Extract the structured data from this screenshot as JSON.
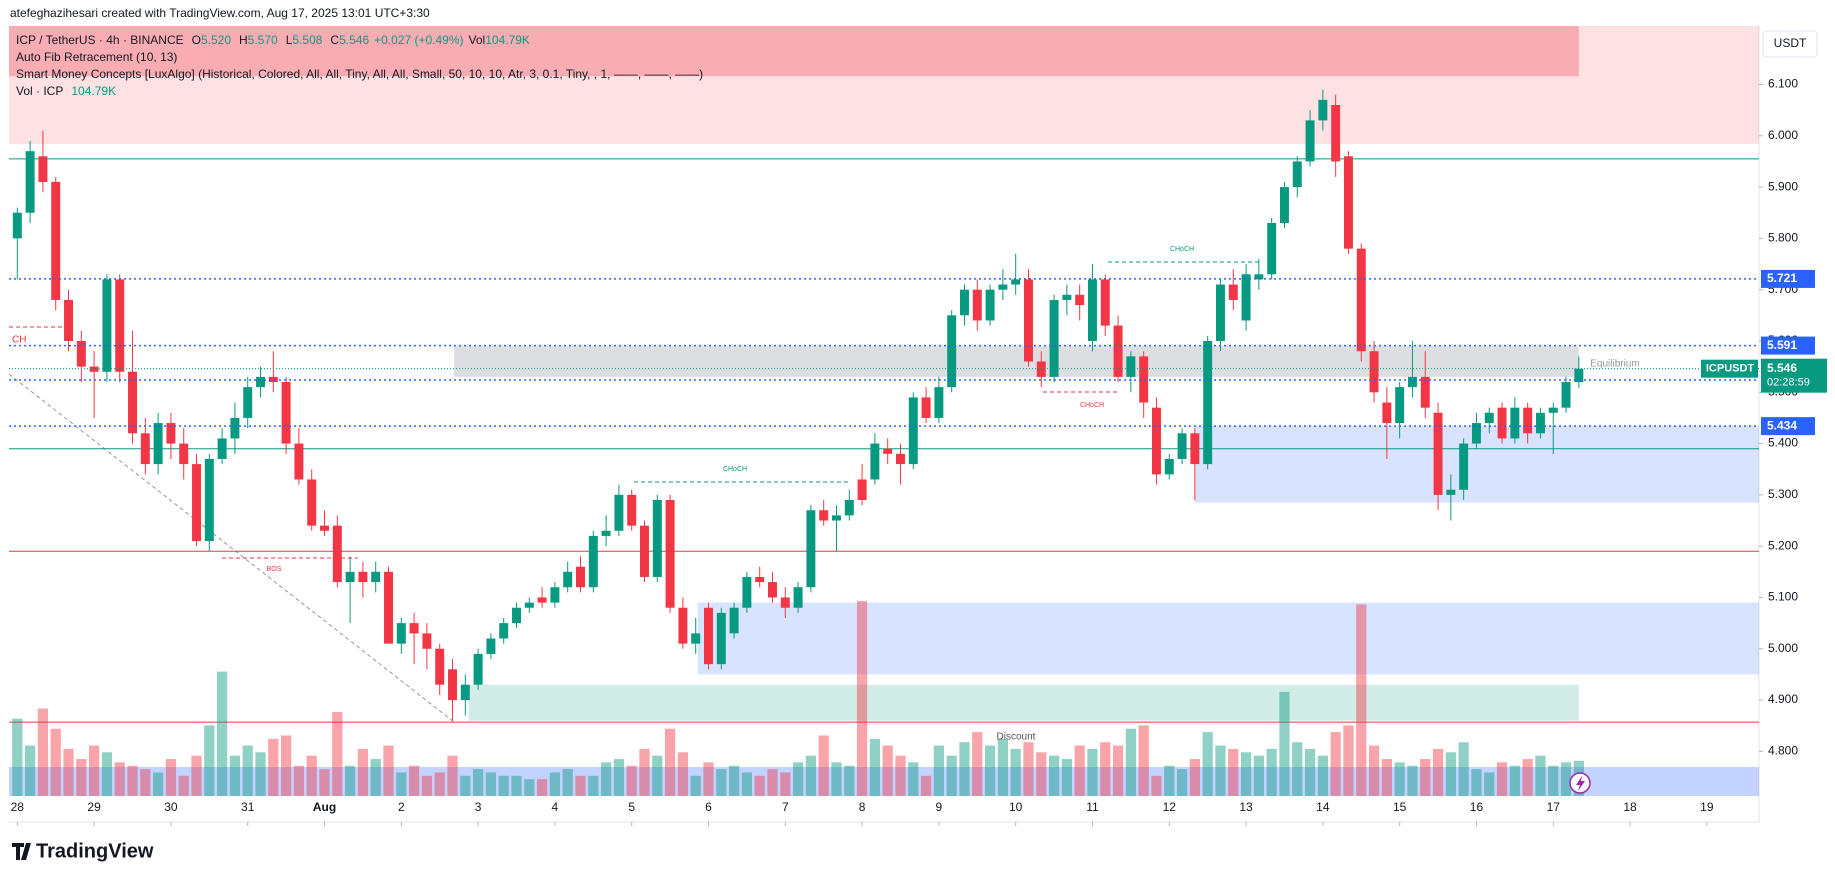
{
  "header": "atefeghazihesari created with TradingView.com, Aug 17, 2025 13:01 UTC+3:30",
  "currency": "USDT",
  "brand": "TradingView",
  "legend": {
    "symbol": "ICP / TetherUS · 4h · BINANCE",
    "ohlc": [
      {
        "label": "O",
        "value": "5.520"
      },
      {
        "label": "H",
        "value": "5.570"
      },
      {
        "label": "L",
        "value": "5.508"
      },
      {
        "label": "C",
        "value": "5.546"
      }
    ],
    "change": "+0.027 (+0.49%)",
    "vol_label": "Vol",
    "vol": "104.79K",
    "indicators": [
      "Auto Fib Retracement (10, 13)",
      "Smart Money Concepts [LuxAlgo] (Historical, Colored, All, All, Tiny, All, All, Small, 50, 10, 10, Atr, 3, 0.1, Tiny, , 1, ——, ——, ——)"
    ],
    "vol_indicator": "Vol · ICP",
    "vol_indicator_value": "104.79K"
  },
  "chart_data": {
    "type": "candlestick",
    "up_color": "#089981",
    "down_color": "#f23645",
    "xlim": [
      -2.6,
      544.3
    ],
    "ylim": [
      4.713,
      6.214
    ],
    "xticks": [
      {
        "value": 0,
        "label": "28"
      },
      {
        "value": 24,
        "label": "29"
      },
      {
        "value": 48,
        "label": "30"
      },
      {
        "value": 72,
        "label": "31"
      },
      {
        "value": 96,
        "label": "Aug"
      },
      {
        "value": 120,
        "label": "2"
      },
      {
        "value": 144,
        "label": "3"
      },
      {
        "value": 168,
        "label": "4"
      },
      {
        "value": 192,
        "label": "5"
      },
      {
        "value": 216,
        "label": "6"
      },
      {
        "value": 240,
        "label": "7"
      },
      {
        "value": 264,
        "label": "8"
      },
      {
        "value": 288,
        "label": "9"
      },
      {
        "value": 312,
        "label": "10"
      },
      {
        "value": 336,
        "label": "11"
      },
      {
        "value": 360,
        "label": "12"
      },
      {
        "value": 384,
        "label": "13"
      },
      {
        "value": 408,
        "label": "14"
      },
      {
        "value": 432,
        "label": "15"
      },
      {
        "value": 456,
        "label": "16"
      },
      {
        "value": 480,
        "label": "17"
      },
      {
        "value": 504,
        "label": "18"
      },
      {
        "value": 528,
        "label": "19"
      }
    ],
    "yticks": [
      {
        "value": 4.8,
        "label": "4.800"
      },
      {
        "value": 4.9,
        "label": "4.900"
      },
      {
        "value": 5.0,
        "label": "5.000"
      },
      {
        "value": 5.1,
        "label": "5.100"
      },
      {
        "value": 5.2,
        "label": "5.200"
      },
      {
        "value": 5.3,
        "label": "5.300"
      },
      {
        "value": 5.4,
        "label": "5.400"
      },
      {
        "value": 5.5,
        "label": "5.500"
      },
      {
        "value": 5.6,
        "label": "5.600"
      },
      {
        "value": 5.7,
        "label": "5.700"
      },
      {
        "value": 5.8,
        "label": "5.800"
      },
      {
        "value": 5.9,
        "label": "5.900"
      },
      {
        "value": 6.0,
        "label": "6.000"
      },
      {
        "value": 6.1,
        "label": "6.100"
      }
    ],
    "x": [
      0,
      4,
      8,
      12,
      16,
      20,
      24,
      28,
      32,
      36,
      40,
      44,
      48,
      52,
      56,
      60,
      64,
      68,
      72,
      76,
      80,
      84,
      88,
      92,
      96,
      100,
      104,
      108,
      112,
      116,
      120,
      124,
      128,
      132,
      136,
      140,
      144,
      148,
      152,
      156,
      160,
      164,
      168,
      172,
      176,
      180,
      184,
      188,
      192,
      196,
      200,
      204,
      208,
      212,
      216,
      220,
      224,
      228,
      232,
      236,
      240,
      244,
      248,
      252,
      256,
      260,
      264,
      268,
      272,
      276,
      280,
      284,
      288,
      292,
      296,
      300,
      304,
      308,
      312,
      316,
      320,
      324,
      328,
      332,
      336,
      340,
      344,
      348,
      352,
      356,
      360,
      364,
      368,
      372,
      376,
      380,
      384,
      388,
      392,
      396,
      400,
      404,
      408,
      412,
      416,
      420,
      424,
      428,
      432,
      436,
      440,
      444,
      448,
      452,
      456,
      460,
      464,
      468,
      472,
      476,
      480,
      484,
      488
    ],
    "ohlc": [
      [
        5.8,
        5.86,
        5.72,
        5.85
      ],
      [
        5.85,
        5.99,
        5.83,
        5.97
      ],
      [
        5.96,
        6.01,
        5.89,
        5.91
      ],
      [
        5.91,
        5.92,
        5.66,
        5.68
      ],
      [
        5.68,
        5.7,
        5.58,
        5.6
      ],
      [
        5.6,
        5.62,
        5.52,
        5.55
      ],
      [
        5.55,
        5.58,
        5.45,
        5.54
      ],
      [
        5.54,
        5.73,
        5.52,
        5.72
      ],
      [
        5.72,
        5.73,
        5.52,
        5.54
      ],
      [
        5.54,
        5.62,
        5.4,
        5.42
      ],
      [
        5.42,
        5.45,
        5.34,
        5.36
      ],
      [
        5.36,
        5.46,
        5.34,
        5.44
      ],
      [
        5.44,
        5.46,
        5.37,
        5.4
      ],
      [
        5.4,
        5.43,
        5.33,
        5.36
      ],
      [
        5.36,
        5.38,
        5.2,
        5.21
      ],
      [
        5.21,
        5.38,
        5.19,
        5.37
      ],
      [
        5.37,
        5.43,
        5.36,
        5.41
      ],
      [
        5.41,
        5.48,
        5.38,
        5.45
      ],
      [
        5.45,
        5.53,
        5.43,
        5.51
      ],
      [
        5.51,
        5.55,
        5.49,
        5.53
      ],
      [
        5.53,
        5.58,
        5.5,
        5.52
      ],
      [
        5.52,
        5.53,
        5.38,
        5.4
      ],
      [
        5.4,
        5.43,
        5.32,
        5.33
      ],
      [
        5.33,
        5.35,
        5.23,
        5.24
      ],
      [
        5.24,
        5.27,
        5.22,
        5.23
      ],
      [
        5.24,
        5.26,
        5.12,
        5.13
      ],
      [
        5.13,
        5.18,
        5.05,
        5.15
      ],
      [
        5.15,
        5.17,
        5.1,
        5.13
      ],
      [
        5.13,
        5.17,
        5.11,
        5.15
      ],
      [
        5.15,
        5.16,
        5.01,
        5.01
      ],
      [
        5.01,
        5.06,
        4.99,
        5.05
      ],
      [
        5.05,
        5.07,
        4.97,
        5.03
      ],
      [
        5.03,
        5.05,
        4.96,
        5.0
      ],
      [
        5.0,
        5.01,
        4.91,
        4.93
      ],
      [
        4.96,
        4.98,
        4.86,
        4.9
      ],
      [
        4.9,
        4.95,
        4.87,
        4.93
      ],
      [
        4.93,
        5.0,
        4.92,
        4.99
      ],
      [
        4.99,
        5.03,
        4.98,
        5.02
      ],
      [
        5.02,
        5.06,
        5.01,
        5.05
      ],
      [
        5.05,
        5.09,
        5.04,
        5.08
      ],
      [
        5.08,
        5.1,
        5.07,
        5.09
      ],
      [
        5.1,
        5.12,
        5.08,
        5.09
      ],
      [
        5.09,
        5.13,
        5.08,
        5.12
      ],
      [
        5.12,
        5.17,
        5.11,
        5.15
      ],
      [
        5.16,
        5.18,
        5.11,
        5.12
      ],
      [
        5.12,
        5.23,
        5.11,
        5.22
      ],
      [
        5.22,
        5.26,
        5.2,
        5.23
      ],
      [
        5.23,
        5.32,
        5.22,
        5.3
      ],
      [
        5.3,
        5.31,
        5.23,
        5.24
      ],
      [
        5.24,
        5.25,
        5.13,
        5.14
      ],
      [
        5.14,
        5.3,
        5.13,
        5.29
      ],
      [
        5.29,
        5.3,
        5.07,
        5.08
      ],
      [
        5.08,
        5.1,
        5.0,
        5.01
      ],
      [
        5.01,
        5.06,
        4.99,
        5.03
      ],
      [
        5.08,
        5.09,
        4.96,
        4.97
      ],
      [
        4.97,
        5.08,
        4.96,
        5.07
      ],
      [
        5.03,
        5.09,
        5.02,
        5.08
      ],
      [
        5.08,
        5.15,
        5.07,
        5.14
      ],
      [
        5.14,
        5.16,
        5.12,
        5.13
      ],
      [
        5.13,
        5.15,
        5.09,
        5.1
      ],
      [
        5.1,
        5.12,
        5.06,
        5.08
      ],
      [
        5.08,
        5.13,
        5.07,
        5.12
      ],
      [
        5.12,
        5.28,
        5.11,
        5.27
      ],
      [
        5.27,
        5.29,
        5.24,
        5.25
      ],
      [
        5.25,
        5.28,
        5.19,
        5.26
      ],
      [
        5.26,
        5.31,
        5.25,
        5.29
      ],
      [
        5.33,
        5.36,
        5.28,
        5.29
      ],
      [
        5.33,
        5.42,
        5.32,
        5.4
      ],
      [
        5.39,
        5.41,
        5.36,
        5.38
      ],
      [
        5.38,
        5.4,
        5.32,
        5.36
      ],
      [
        5.36,
        5.5,
        5.35,
        5.49
      ],
      [
        5.49,
        5.51,
        5.44,
        5.45
      ],
      [
        5.45,
        5.53,
        5.44,
        5.51
      ],
      [
        5.51,
        5.66,
        5.5,
        5.65
      ],
      [
        5.65,
        5.71,
        5.63,
        5.7
      ],
      [
        5.7,
        5.72,
        5.62,
        5.64
      ],
      [
        5.64,
        5.71,
        5.63,
        5.7
      ],
      [
        5.7,
        5.74,
        5.68,
        5.71
      ],
      [
        5.71,
        5.77,
        5.69,
        5.72
      ],
      [
        5.72,
        5.74,
        5.55,
        5.56
      ],
      [
        5.56,
        5.58,
        5.51,
        5.53
      ],
      [
        5.53,
        5.69,
        5.52,
        5.68
      ],
      [
        5.68,
        5.71,
        5.65,
        5.69
      ],
      [
        5.69,
        5.71,
        5.64,
        5.67
      ],
      [
        5.6,
        5.75,
        5.58,
        5.72
      ],
      [
        5.72,
        5.73,
        5.61,
        5.63
      ],
      [
        5.63,
        5.65,
        5.52,
        5.53
      ],
      [
        5.53,
        5.58,
        5.5,
        5.57
      ],
      [
        5.57,
        5.58,
        5.45,
        5.48
      ],
      [
        5.47,
        5.49,
        5.32,
        5.34
      ],
      [
        5.34,
        5.38,
        5.33,
        5.37
      ],
      [
        5.37,
        5.43,
        5.36,
        5.42
      ],
      [
        5.42,
        5.43,
        5.29,
        5.36
      ],
      [
        5.36,
        5.61,
        5.35,
        5.6
      ],
      [
        5.6,
        5.72,
        5.58,
        5.71
      ],
      [
        5.71,
        5.74,
        5.66,
        5.68
      ],
      [
        5.64,
        5.75,
        5.62,
        5.73
      ],
      [
        5.72,
        5.76,
        5.7,
        5.73
      ],
      [
        5.73,
        5.84,
        5.72,
        5.83
      ],
      [
        5.83,
        5.91,
        5.82,
        5.9
      ],
      [
        5.9,
        5.96,
        5.88,
        5.95
      ],
      [
        5.95,
        6.05,
        5.94,
        6.03
      ],
      [
        6.03,
        6.09,
        6.01,
        6.07
      ],
      [
        6.06,
        6.08,
        5.92,
        5.95
      ],
      [
        5.96,
        5.97,
        5.77,
        5.78
      ],
      [
        5.78,
        5.79,
        5.56,
        5.58
      ],
      [
        5.58,
        5.6,
        5.48,
        5.5
      ],
      [
        5.48,
        5.51,
        5.37,
        5.44
      ],
      [
        5.44,
        5.52,
        5.41,
        5.51
      ],
      [
        5.51,
        5.6,
        5.49,
        5.53
      ],
      [
        5.53,
        5.58,
        5.45,
        5.47
      ],
      [
        5.46,
        5.48,
        5.27,
        5.3
      ],
      [
        5.3,
        5.34,
        5.25,
        5.31
      ],
      [
        5.31,
        5.41,
        5.29,
        5.4
      ],
      [
        5.4,
        5.46,
        5.39,
        5.44
      ],
      [
        5.44,
        5.47,
        5.42,
        5.46
      ],
      [
        5.47,
        5.48,
        5.4,
        5.41
      ],
      [
        5.41,
        5.49,
        5.4,
        5.47
      ],
      [
        5.47,
        5.48,
        5.4,
        5.42
      ],
      [
        5.42,
        5.47,
        5.41,
        5.46
      ],
      [
        5.46,
        5.48,
        5.38,
        5.47
      ],
      [
        5.47,
        5.53,
        5.46,
        5.52
      ],
      [
        5.52,
        5.57,
        5.508,
        5.546
      ]
    ],
    "volume": [
      230,
      150,
      260,
      200,
      140,
      110,
      150,
      130,
      100,
      90,
      80,
      70,
      110,
      60,
      120,
      210,
      370,
      120,
      150,
      130,
      170,
      180,
      90,
      120,
      80,
      250,
      90,
      140,
      110,
      150,
      70,
      90,
      60,
      70,
      120,
      60,
      80,
      70,
      60,
      60,
      50,
      50,
      70,
      80,
      60,
      60,
      100,
      110,
      90,
      140,
      120,
      200,
      130,
      60,
      100,
      80,
      90,
      70,
      60,
      80,
      70,
      100,
      120,
      180,
      100,
      90,
      580,
      170,
      150,
      120,
      100,
      60,
      150,
      120,
      160,
      190,
      150,
      170,
      140,
      160,
      130,
      120,
      110,
      150,
      140,
      160,
      150,
      200,
      210,
      60,
      90,
      80,
      110,
      190,
      150,
      140,
      130,
      120,
      140,
      310,
      160,
      140,
      120,
      190,
      210,
      570,
      150,
      110,
      100,
      90,
      110,
      140,
      130,
      160,
      80,
      70,
      100,
      90,
      110,
      120,
      90,
      100,
      104.79
    ],
    "zones": [
      {
        "x": [
          -2.6,
          544.3
        ],
        "y": [
          5.984,
          6.214
        ],
        "color": "rgba(242,54,69,0.15)"
      },
      {
        "x": [
          -2.6,
          488
        ],
        "y": [
          6.116,
          6.214
        ],
        "color": "rgba(242,54,69,0.3)"
      },
      {
        "x": [
          136.5,
          488
        ],
        "y": [
          5.53,
          5.59
        ],
        "color": "rgba(120,123,134,0.25)"
      },
      {
        "x": [
          368,
          544.3
        ],
        "y": [
          5.285,
          5.434
        ],
        "color": "rgba(41,98,255,0.18)"
      },
      {
        "x": [
          212.6,
          544.3
        ],
        "y": [
          4.95,
          5.09
        ],
        "color": "rgba(41,98,255,0.18)"
      },
      {
        "x": [
          141,
          488
        ],
        "y": [
          4.86,
          4.93
        ],
        "color": "rgba(8,153,129,0.18)"
      }
    ],
    "lines": [
      {
        "value": 5.955,
        "color": "#089981"
      },
      {
        "value": 5.39,
        "color": "#089981"
      },
      {
        "value": 5.19,
        "color": "#f23645"
      },
      {
        "value": 4.857,
        "color": "#f23645"
      }
    ],
    "levels": [
      {
        "value": 5.721,
        "color": "#2962ff"
      },
      {
        "value": 5.591,
        "color": "#2962ff"
      },
      {
        "value": 5.524,
        "color": "#2962ff"
      },
      {
        "value": 5.434,
        "color": "#2962ff"
      }
    ],
    "last": {
      "symbol": "ICPUSDT",
      "countdown": "02:28:59",
      "color": "#089981"
    },
    "annotations": [
      {
        "text": "CHoCH",
        "color": "#089981"
      },
      {
        "text": "BOS",
        "color": "#f23645"
      },
      {
        "text": "CHoCH",
        "color": "#f23645"
      },
      {
        "text": "CHoCH",
        "color": "#089981"
      },
      {
        "text": "Discount",
        "color": "#555"
      },
      {
        "text": "Equilibrium",
        "color": "#9598a1"
      },
      {
        "text": "CH",
        "color": "#f23645"
      }
    ]
  }
}
